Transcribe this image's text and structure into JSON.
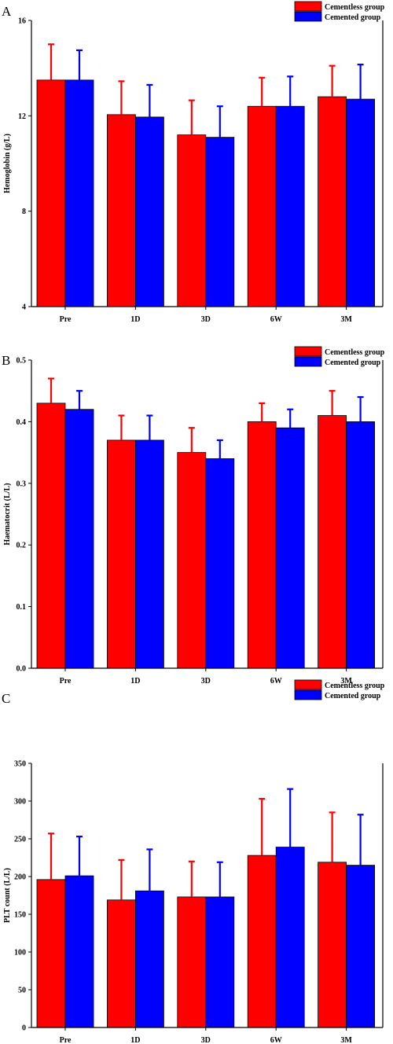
{
  "colors": {
    "red": "#ff0000",
    "blue": "#0000ff",
    "axis": "#000000"
  },
  "chart_data": [
    {
      "panel": "A",
      "type": "bar",
      "categories": [
        "Pre",
        "1D",
        "3D",
        "6W",
        "3M"
      ],
      "ylabel": "Hemoglobin (g/L)",
      "ylim": [
        4,
        16
      ],
      "yticks": [
        4,
        8,
        12,
        16
      ],
      "legend": "top-right",
      "series": [
        {
          "name": "Cementless group",
          "color": "#ff0000",
          "values": [
            13.5,
            12.05,
            11.2,
            12.4,
            12.8
          ],
          "err": [
            1.5,
            1.4,
            1.45,
            1.2,
            1.3
          ]
        },
        {
          "name": "Cemented group",
          "color": "#0000ff",
          "values": [
            13.5,
            11.95,
            11.1,
            12.4,
            12.7
          ],
          "err": [
            1.25,
            1.35,
            1.3,
            1.25,
            1.45
          ]
        }
      ]
    },
    {
      "panel": "B",
      "type": "bar",
      "categories": [
        "Pre",
        "1D",
        "3D",
        "6W",
        "3M"
      ],
      "ylabel": "Haematocrit (L/L)",
      "ylim": [
        0,
        0.5
      ],
      "yticks": [
        0.0,
        0.1,
        0.2,
        0.3,
        0.4,
        0.5
      ],
      "legend": "top-right",
      "series": [
        {
          "name": "Cementless group",
          "color": "#ff0000",
          "values": [
            0.43,
            0.37,
            0.35,
            0.4,
            0.41
          ],
          "err": [
            0.04,
            0.04,
            0.04,
            0.03,
            0.04
          ]
        },
        {
          "name": "Cemented group",
          "color": "#0000ff",
          "values": [
            0.42,
            0.37,
            0.34,
            0.39,
            0.4
          ],
          "err": [
            0.03,
            0.04,
            0.03,
            0.03,
            0.04
          ]
        }
      ]
    },
    {
      "panel": "C",
      "type": "bar",
      "categories": [
        "Pre",
        "1D",
        "3D",
        "6W",
        "3M"
      ],
      "ylabel": "PLT count (L/L)",
      "ylim": [
        0,
        350
      ],
      "yticks": [
        0,
        50,
        100,
        150,
        200,
        250,
        300,
        350
      ],
      "legend": "top-right",
      "series": [
        {
          "name": "Cementless group",
          "color": "#ff0000",
          "values": [
            196,
            169,
            173,
            228,
            219
          ],
          "err": [
            61,
            53,
            47,
            75,
            66
          ]
        },
        {
          "name": "Cemented group",
          "color": "#0000ff",
          "values": [
            201,
            181,
            173,
            239,
            215
          ],
          "err": [
            52,
            55,
            46,
            77,
            67
          ]
        }
      ]
    }
  ]
}
